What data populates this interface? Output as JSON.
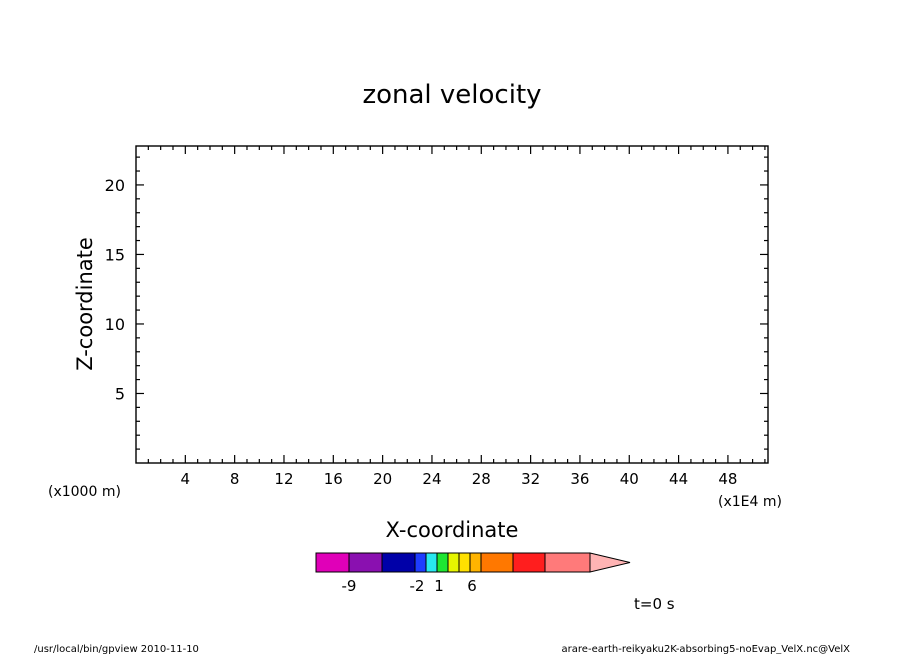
{
  "chart_data": {
    "type": "heatmap",
    "title": "zonal velocity",
    "xlabel": "X-coordinate",
    "ylabel": "Z-coordinate",
    "x_scale_note": "(x1E4 m)",
    "y_scale_note": "(x1000 m)",
    "xlim": [
      0,
      51.25
    ],
    "ylim": [
      0,
      22.8
    ],
    "x_ticks": [
      4,
      8,
      12,
      16,
      20,
      24,
      28,
      32,
      36,
      40,
      44,
      48
    ],
    "y_ticks": [
      5,
      10,
      15,
      20
    ],
    "x_tick_labels": [
      "4",
      "8",
      "12",
      "16",
      "20",
      "24",
      "28",
      "32",
      "36",
      "40",
      "44",
      "48"
    ],
    "y_tick_labels": [
      "5",
      "10",
      "15",
      "20"
    ],
    "time_label": "t=0 s",
    "colorbar": {
      "colors": [
        "#e000b8",
        "#8a10b0",
        "#0000a8",
        "#1e3cff",
        "#28e8f0",
        "#1ee632",
        "#e6f500",
        "#ffe000",
        "#ffb400",
        "#ff7800",
        "#ff1e1e",
        "#ff7a7a",
        "#ffb4b4"
      ],
      "labels": [
        {
          "text": "-9",
          "value": -9
        },
        {
          "text": "-2",
          "value": -2
        },
        {
          "text": "1",
          "value": 1
        },
        {
          "text": "6",
          "value": 6
        }
      ]
    }
  },
  "footer": {
    "left": "/usr/local/bin/gpview  2010-11-10",
    "right": "arare-earth-reikyaku2K-absorbing5-noEvap_VelX.nc@VelX"
  }
}
